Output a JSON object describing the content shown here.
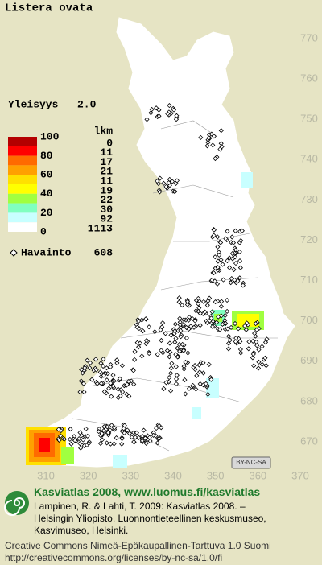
{
  "title": "Listera ovata",
  "frequency_label": "Yleisyys",
  "frequency_value": "2.0",
  "legend": {
    "count_header": "lkm",
    "scale_labels": [
      100,
      80,
      60,
      40,
      20,
      0
    ],
    "colors": [
      "#b40000",
      "#ff0000",
      "#ff6a00",
      "#ffa000",
      "#ffe000",
      "#ffff00",
      "#a0ff40",
      "#80ffc0",
      "#c8ffff",
      "#ffffff"
    ],
    "counts": [
      0,
      11,
      17,
      21,
      11,
      19,
      22,
      30,
      92,
      1113
    ]
  },
  "observations": {
    "label": "Havainto",
    "count": 608
  },
  "grid": {
    "yticks": [
      770,
      760,
      750,
      740,
      730,
      720,
      710,
      700,
      690,
      680,
      670
    ],
    "xticks": [
      310,
      320,
      330,
      340,
      350,
      360,
      370
    ]
  },
  "license_badge": "BY-NC-SA",
  "footer": {
    "headline": "Kasviatlas 2008, www.luomus.fi/kasviatlas",
    "citation": [
      "Lampinen, R. & Lahti, T. 2009: Kasviatlas 2008. –",
      "Helsingin Yliopisto, Luonnontieteellinen keskusmuseo,",
      "Kasvimuseo, Helsinki."
    ],
    "license": [
      "Creative Commons Nimeä-Epäkaupallinen-Tarttuva 1.0 Suomi",
      "http://creativecommons.org/licenses/by-nc-sa/1.0/fi"
    ]
  }
}
